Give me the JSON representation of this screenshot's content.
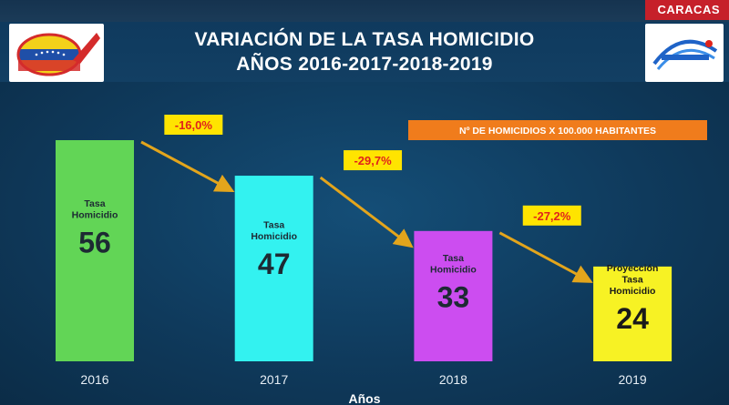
{
  "header": {
    "location": "CARACAS",
    "title_line1": "VARIACIÓN DE LA TASA HOMICIDIO",
    "title_line2": "AÑOS 2016-2017-2018-2019"
  },
  "chart_data": {
    "type": "bar",
    "title": "VARIACIÓN DE LA TASA HOMICIDIO AÑOS 2016-2017-2018-2019",
    "categories": [
      "2016",
      "2017",
      "2018",
      "2019"
    ],
    "values": [
      56,
      47,
      33,
      24
    ],
    "ylim": [
      0,
      60
    ],
    "xlabel": "Años",
    "ylabel": "",
    "grid": false,
    "legend": "Nº DE HOMICIDIOS X 100.000 HABITANTES",
    "legend_position": "top-right",
    "bar_colors": [
      "#62d556",
      "#33f2f0",
      "#cc4df0",
      "#f7f224"
    ],
    "bar_label_lines": [
      [
        "Tasa",
        "Homicidio"
      ],
      [
        "Tasa",
        "Homicidio"
      ],
      [
        "Tasa",
        "Homicidio"
      ],
      [
        "Proyección",
        "Tasa",
        "Homicidio"
      ]
    ],
    "annotations": [
      "-16,0%",
      "-29,7%",
      "-27,2%"
    ]
  },
  "colors": {
    "arrow": "#e3a51c",
    "annotation_bg": "#ffe400",
    "annotation_text": "#e0231b",
    "legend_bg": "#f07c1c"
  }
}
